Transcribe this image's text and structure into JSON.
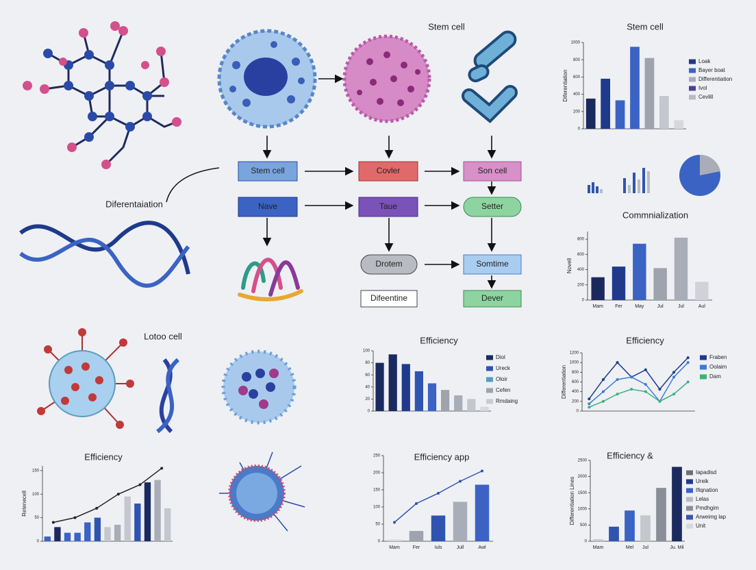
{
  "labels": {
    "flow_title": "Stem cell",
    "differentiation": "Diferentaiation",
    "lotoo": "Lotoo cell"
  },
  "nodes": [
    "Stem cell",
    "Covler",
    "Son cell",
    "Nave",
    "Taue",
    "Setter",
    "Drotem",
    "Somtime",
    "Difeentine",
    "Dever"
  ],
  "charts": [
    {
      "type": "bar",
      "title": "Stem cell",
      "ylabel": "Diferentiation",
      "ylim": [
        0,
        1000
      ],
      "yticks": [
        0,
        200,
        400,
        600,
        800,
        1000
      ],
      "series": [
        {
          "type": "bar",
          "values": [
            350,
            580,
            330,
            950,
            820,
            380,
            100
          ],
          "colors": [
            "#1b2a5e",
            "#1f3a8a",
            "#3a63c4",
            "#3a63c4",
            "#9fa3ad",
            "#c4c7ce",
            "#d6d8dc"
          ]
        }
      ],
      "legend": [
        {
          "label": "Loak",
          "color": "#1f3a8a"
        },
        {
          "label": "Bayer boat",
          "color": "#3a63c4"
        },
        {
          "label": "Differentiation",
          "color": "#a9adb8"
        },
        {
          "label": "Ivol",
          "color": "#4a3f9a"
        },
        {
          "label": "Cevlill",
          "color": "#b8bbc2"
        }
      ]
    },
    {
      "type": "bar",
      "title": "Commnialization",
      "ylabel": "Novell",
      "ylim": [
        0,
        900
      ],
      "yticks": [
        0,
        200,
        400,
        600,
        800
      ],
      "categories": [
        "Mam",
        "Fer",
        "May",
        "Jul",
        "Jul",
        "Aul"
      ],
      "series": [
        {
          "type": "bar",
          "values": [
            300,
            440,
            740,
            420,
            820,
            240
          ],
          "colors": [
            "#1b2a5e",
            "#1f3a8a",
            "#3a63c4",
            "#9fa3ad",
            "#a9adb8",
            "#d0d2d8"
          ]
        }
      ]
    },
    {
      "type": "bar",
      "title": "Efficiency",
      "ylim": [
        0,
        100
      ],
      "yticks": [
        0,
        20,
        40,
        60,
        80,
        100
      ],
      "series": [
        {
          "type": "bar",
          "values": [
            80,
            94,
            78,
            66,
            46,
            35,
            26,
            20,
            7
          ],
          "colors": [
            "#1b2a5e",
            "#1b2a5e",
            "#1f3a8a",
            "#2f54b0",
            "#3a63c4",
            "#9fa3ad",
            "#a9adb8",
            "#c4c7ce",
            "#d6d8dc"
          ]
        }
      ],
      "legend": [
        {
          "label": "Diol",
          "color": "#1b2a5e"
        },
        {
          "label": "Ureck",
          "color": "#2f54b0"
        },
        {
          "label": "Oloir",
          "color": "#5a9bc0"
        },
        {
          "label": "Cefen",
          "color": "#9fa3ad"
        },
        {
          "label": "Rmdaing",
          "color": "#c8cbd1"
        }
      ]
    },
    {
      "type": "line",
      "title": "Efficiency",
      "ylabel": "Differentiation",
      "ylim": [
        0,
        1200
      ],
      "yticks": [
        0,
        200,
        400,
        600,
        800,
        1000,
        1200
      ],
      "series": [
        {
          "type": "line",
          "name": "Fraben",
          "color": "#1f3a8a",
          "values": [
            250,
            650,
            1000,
            700,
            850,
            450,
            800,
            1100
          ]
        },
        {
          "type": "line",
          "name": "Oolaim",
          "color": "#3a7bd5",
          "values": [
            150,
            400,
            650,
            700,
            550,
            200,
            700,
            1000
          ]
        },
        {
          "type": "line",
          "name": "Dam",
          "color": "#3ab27a",
          "values": [
            80,
            200,
            350,
            450,
            400,
            200,
            350,
            600
          ]
        }
      ]
    },
    {
      "type": "combo",
      "title": "Efficiency",
      "ylabel": "Retenecell",
      "ylim": [
        0,
        160
      ],
      "yticks": [
        0,
        50,
        100,
        150
      ],
      "series": [
        {
          "type": "bar",
          "values": [
            10,
            30,
            18,
            18,
            40,
            50,
            30,
            35,
            95,
            80,
            125,
            130,
            70
          ],
          "colors": [
            "#3a63c4",
            "#1b2a5e",
            "#3a63c4",
            "#3a63c4",
            "#3a63c4",
            "#2f54b0",
            "#c4c7ce",
            "#a9adb8",
            "#c4c7ce",
            "#2f54b0",
            "#1b2a5e",
            "#a9adb8",
            "#c4c7ce"
          ]
        },
        {
          "type": "line",
          "color": "#222222",
          "values": [
            40,
            50,
            70,
            100,
            120,
            155
          ]
        }
      ]
    },
    {
      "type": "combo",
      "title": "Efficiency app",
      "ylim": [
        0,
        250
      ],
      "yticks": [
        0,
        50,
        100,
        150,
        200,
        250
      ],
      "categories": [
        "Mam",
        "Fer",
        "Iuls",
        "Jull",
        "Awl"
      ],
      "series": [
        {
          "type": "bar",
          "values": [
            5,
            30,
            75,
            115,
            165
          ],
          "colors": [
            "#d6d8dc",
            "#9fa3ad",
            "#2f54b0",
            "#a9adb8",
            "#3a63c4"
          ]
        },
        {
          "type": "line",
          "color": "#2f54b0",
          "values": [
            55,
            110,
            140,
            175,
            205
          ]
        }
      ]
    },
    {
      "type": "bar",
      "title": "Efficiency &",
      "ylabel": "Differentiation Lines",
      "ylim": [
        0,
        2500
      ],
      "yticks": [
        0,
        500,
        1000,
        1500,
        2000,
        2500
      ],
      "categories": [
        "Mam",
        null,
        "Mel",
        "Jul",
        null,
        "Ju. Mil"
      ],
      "series": [
        {
          "type": "bar",
          "values": [
            60,
            450,
            950,
            800,
            1650,
            2300
          ],
          "colors": [
            "#c4c7ce",
            "#2f54b0",
            "#3a63c4",
            "#c4c7ce",
            "#8a8e98",
            "#1b2a5e"
          ]
        }
      ],
      "legend": [
        {
          "label": "Iapadisd",
          "color": "#6b6f78"
        },
        {
          "label": "Ureik",
          "color": "#1f3a8a"
        },
        {
          "label": "Ifiqnation",
          "color": "#3a63c4"
        },
        {
          "label": "Lelas",
          "color": "#b8bbc2"
        },
        {
          "label": "Pmdhgim",
          "color": "#8a8e98"
        },
        {
          "label": "Arweimg lap",
          "color": "#3a55a8"
        },
        {
          "label": "Unit",
          "color": "#d6d8dc"
        }
      ]
    }
  ]
}
